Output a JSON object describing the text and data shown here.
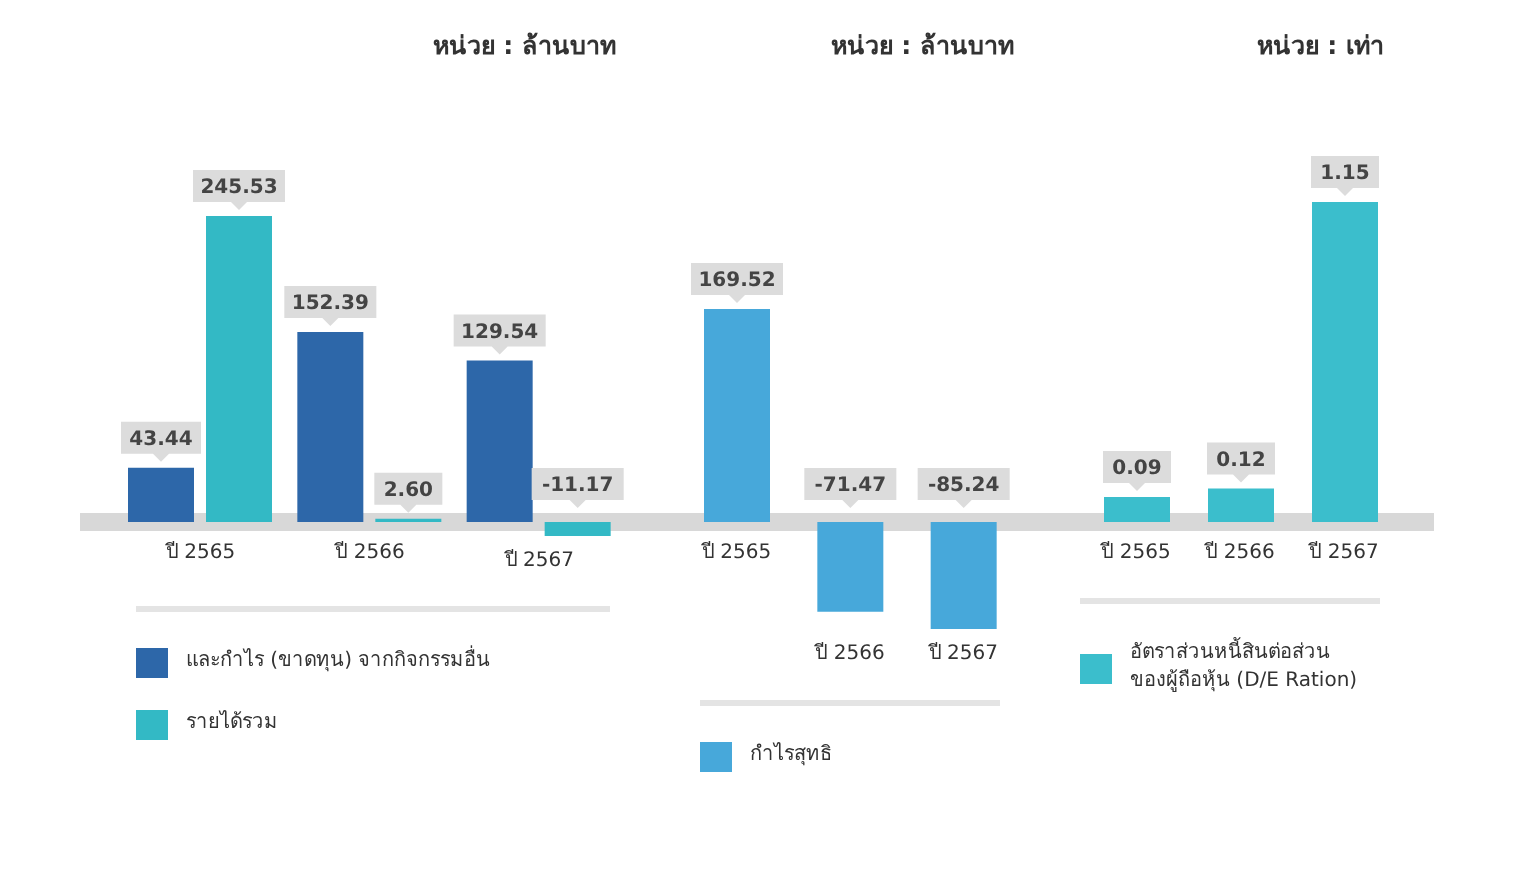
{
  "chart_data": [
    {
      "type": "bar",
      "title": "หน่วย : ล้านบาท",
      "categories": [
        "ปี 2565",
        "ปี 2566",
        "ปี 2567"
      ],
      "series": [
        {
          "name": "และกำไร (ขาดทุน) จากกิจกรรมอื่น",
          "color": "#2d67a9",
          "values": [
            43.44,
            152.39,
            129.54
          ],
          "value_labels": [
            "43.44",
            "152.39",
            "129.54"
          ]
        },
        {
          "name": "รายได้รวม",
          "color": "#33b9c5",
          "values": [
            245.53,
            2.6,
            -11.17
          ],
          "value_labels": [
            "245.53",
            "2.60",
            "-11.17"
          ]
        }
      ],
      "legend": "bottom"
    },
    {
      "type": "bar",
      "title": "หน่วย : ล้านบาท",
      "categories": [
        "ปี 2565",
        "ปี 2566",
        "ปี 2567"
      ],
      "series": [
        {
          "name": "กำไรสุทธิ",
          "color": "#47a8da",
          "values": [
            169.52,
            -71.47,
            -85.24
          ],
          "value_labels": [
            "169.52",
            "-71.47",
            "-85.24"
          ]
        }
      ],
      "legend": "bottom"
    },
    {
      "type": "bar",
      "title": "หน่วย : เท่า",
      "categories": [
        "ปี 2565",
        "ปี 2566",
        "ปี 2567"
      ],
      "series": [
        {
          "name": "อัตราส่วนหนี้สินต่อส่วนของผู้ถือหุ้น (D/E Ration)",
          "color": "#3bbecc",
          "values": [
            0.09,
            0.12,
            1.15
          ],
          "value_labels": [
            "0.09",
            "0.12",
            "1.15"
          ]
        }
      ],
      "legend": "bottom"
    }
  ]
}
